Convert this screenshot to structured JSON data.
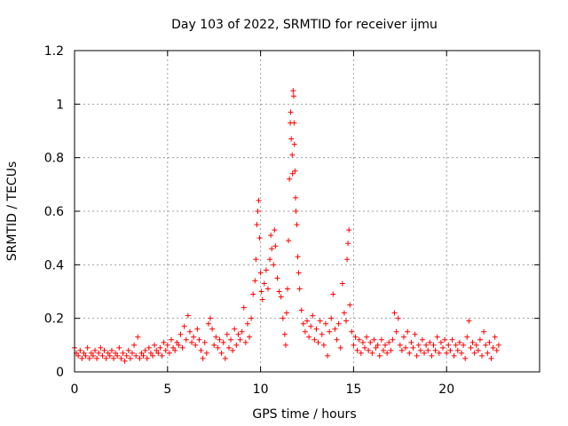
{
  "chart_data": {
    "type": "scatter",
    "title": "Day 103 of 2022, SRMTID for receiver ijmu",
    "xlabel": "GPS time / hours",
    "ylabel": "SRMTID / TECUs",
    "xlim": [
      0,
      25
    ],
    "ylim": [
      0,
      1.2
    ],
    "xticks": [
      0,
      5,
      10,
      15,
      20
    ],
    "xtick_labels": [
      "0",
      "5",
      "10",
      "15",
      "20"
    ],
    "yticks": [
      0,
      0.2,
      0.4,
      0.6,
      0.8,
      1,
      1.2
    ],
    "ytick_labels": [
      "0",
      "0.2",
      "0.4",
      "0.6",
      "0.8",
      "1",
      "1.2"
    ],
    "grid": true,
    "marker": "+",
    "color": "#ff0000",
    "series": [
      {
        "name": "SRMTID",
        "points": [
          [
            0.0,
            0.09
          ],
          [
            0.1,
            0.07
          ],
          [
            0.2,
            0.06
          ],
          [
            0.3,
            0.08
          ],
          [
            0.4,
            0.05
          ],
          [
            0.5,
            0.07
          ],
          [
            0.6,
            0.06
          ],
          [
            0.7,
            0.09
          ],
          [
            0.8,
            0.05
          ],
          [
            0.9,
            0.07
          ],
          [
            1.0,
            0.06
          ],
          [
            1.1,
            0.08
          ],
          [
            1.2,
            0.05
          ],
          [
            1.3,
            0.07
          ],
          [
            1.4,
            0.09
          ],
          [
            1.5,
            0.06
          ],
          [
            1.6,
            0.08
          ],
          [
            1.7,
            0.05
          ],
          [
            1.8,
            0.07
          ],
          [
            1.9,
            0.06
          ],
          [
            2.0,
            0.08
          ],
          [
            2.1,
            0.05
          ],
          [
            2.2,
            0.07
          ],
          [
            2.3,
            0.06
          ],
          [
            2.4,
            0.09
          ],
          [
            2.5,
            0.05
          ],
          [
            2.6,
            0.07
          ],
          [
            2.7,
            0.04
          ],
          [
            2.8,
            0.06
          ],
          [
            2.9,
            0.08
          ],
          [
            3.0,
            0.05
          ],
          [
            3.1,
            0.07
          ],
          [
            3.2,
            0.1
          ],
          [
            3.3,
            0.06
          ],
          [
            3.4,
            0.13
          ],
          [
            3.5,
            0.05
          ],
          [
            3.6,
            0.07
          ],
          [
            3.7,
            0.06
          ],
          [
            3.8,
            0.08
          ],
          [
            3.9,
            0.05
          ],
          [
            4.0,
            0.09
          ],
          [
            4.1,
            0.07
          ],
          [
            4.2,
            0.06
          ],
          [
            4.3,
            0.1
          ],
          [
            4.4,
            0.08
          ],
          [
            4.5,
            0.07
          ],
          [
            4.6,
            0.09
          ],
          [
            4.7,
            0.06
          ],
          [
            4.8,
            0.11
          ],
          [
            4.9,
            0.08
          ],
          [
            5.0,
            0.1
          ],
          [
            5.1,
            0.07
          ],
          [
            5.2,
            0.12
          ],
          [
            5.3,
            0.09
          ],
          [
            5.4,
            0.08
          ],
          [
            5.5,
            0.11
          ],
          [
            5.6,
            0.1
          ],
          [
            5.7,
            0.14
          ],
          [
            5.8,
            0.09
          ],
          [
            5.9,
            0.17
          ],
          [
            6.0,
            0.12
          ],
          [
            6.1,
            0.21
          ],
          [
            6.2,
            0.15
          ],
          [
            6.3,
            0.11
          ],
          [
            6.4,
            0.13
          ],
          [
            6.5,
            0.1
          ],
          [
            6.6,
            0.16
          ],
          [
            6.7,
            0.12
          ],
          [
            6.8,
            0.08
          ],
          [
            6.9,
            0.05
          ],
          [
            7.0,
            0.11
          ],
          [
            7.1,
            0.07
          ],
          [
            7.2,
            0.18
          ],
          [
            7.3,
            0.2
          ],
          [
            7.4,
            0.16
          ],
          [
            7.5,
            0.1
          ],
          [
            7.6,
            0.13
          ],
          [
            7.7,
            0.09
          ],
          [
            7.8,
            0.12
          ],
          [
            7.9,
            0.07
          ],
          [
            8.0,
            0.11
          ],
          [
            8.1,
            0.05
          ],
          [
            8.2,
            0.14
          ],
          [
            8.3,
            0.09
          ],
          [
            8.4,
            0.12
          ],
          [
            8.5,
            0.08
          ],
          [
            8.6,
            0.16
          ],
          [
            8.7,
            0.1
          ],
          [
            8.8,
            0.14
          ],
          [
            8.9,
            0.12
          ],
          [
            9.0,
            0.15
          ],
          [
            9.1,
            0.24
          ],
          [
            9.2,
            0.11
          ],
          [
            9.3,
            0.18
          ],
          [
            9.4,
            0.13
          ],
          [
            9.5,
            0.2
          ],
          [
            9.6,
            0.29
          ],
          [
            9.7,
            0.34
          ],
          [
            9.75,
            0.42
          ],
          [
            9.8,
            0.55
          ],
          [
            9.85,
            0.6
          ],
          [
            9.9,
            0.64
          ],
          [
            9.95,
            0.5
          ],
          [
            10.0,
            0.37
          ],
          [
            10.05,
            0.3
          ],
          [
            10.1,
            0.27
          ],
          [
            10.2,
            0.33
          ],
          [
            10.3,
            0.38
          ],
          [
            10.4,
            0.31
          ],
          [
            10.5,
            0.42
          ],
          [
            10.55,
            0.51
          ],
          [
            10.6,
            0.46
          ],
          [
            10.7,
            0.4
          ],
          [
            10.75,
            0.53
          ],
          [
            10.8,
            0.47
          ],
          [
            10.9,
            0.35
          ],
          [
            11.0,
            0.3
          ],
          [
            11.1,
            0.28
          ],
          [
            11.2,
            0.2
          ],
          [
            11.3,
            0.14
          ],
          [
            11.35,
            0.1
          ],
          [
            11.4,
            0.22
          ],
          [
            11.45,
            0.31
          ],
          [
            11.5,
            0.49
          ],
          [
            11.55,
            0.72
          ],
          [
            11.6,
            0.93
          ],
          [
            11.62,
            0.97
          ],
          [
            11.65,
            0.87
          ],
          [
            11.7,
            0.81
          ],
          [
            11.72,
            0.74
          ],
          [
            11.75,
            1.05
          ],
          [
            11.78,
            1.03
          ],
          [
            11.8,
            0.93
          ],
          [
            11.82,
            0.85
          ],
          [
            11.85,
            0.75
          ],
          [
            11.88,
            0.65
          ],
          [
            11.9,
            0.6
          ],
          [
            11.95,
            0.55
          ],
          [
            12.0,
            0.43
          ],
          [
            12.05,
            0.37
          ],
          [
            12.1,
            0.31
          ],
          [
            12.2,
            0.23
          ],
          [
            12.3,
            0.18
          ],
          [
            12.4,
            0.15
          ],
          [
            12.5,
            0.19
          ],
          [
            12.6,
            0.13
          ],
          [
            12.7,
            0.17
          ],
          [
            12.8,
            0.21
          ],
          [
            12.9,
            0.12
          ],
          [
            13.0,
            0.16
          ],
          [
            13.1,
            0.11
          ],
          [
            13.2,
            0.19
          ],
          [
            13.3,
            0.14
          ],
          [
            13.4,
            0.1
          ],
          [
            13.5,
            0.18
          ],
          [
            13.6,
            0.06
          ],
          [
            13.7,
            0.15
          ],
          [
            13.8,
            0.2
          ],
          [
            13.9,
            0.29
          ],
          [
            14.0,
            0.16
          ],
          [
            14.1,
            0.12
          ],
          [
            14.2,
            0.18
          ],
          [
            14.3,
            0.09
          ],
          [
            14.4,
            0.33
          ],
          [
            14.5,
            0.22
          ],
          [
            14.6,
            0.19
          ],
          [
            14.65,
            0.42
          ],
          [
            14.7,
            0.48
          ],
          [
            14.75,
            0.53
          ],
          [
            14.8,
            0.25
          ],
          [
            14.9,
            0.15
          ],
          [
            15.0,
            0.1
          ],
          [
            15.1,
            0.13
          ],
          [
            15.2,
            0.08
          ],
          [
            15.3,
            0.12
          ],
          [
            15.4,
            0.07
          ],
          [
            15.5,
            0.11
          ],
          [
            15.6,
            0.09
          ],
          [
            15.7,
            0.13
          ],
          [
            15.8,
            0.08
          ],
          [
            15.9,
            0.11
          ],
          [
            16.0,
            0.07
          ],
          [
            16.1,
            0.12
          ],
          [
            16.2,
            0.09
          ],
          [
            16.3,
            0.1
          ],
          [
            16.4,
            0.06
          ],
          [
            16.5,
            0.12
          ],
          [
            16.6,
            0.08
          ],
          [
            16.7,
            0.1
          ],
          [
            16.8,
            0.07
          ],
          [
            16.9,
            0.11
          ],
          [
            17.0,
            0.08
          ],
          [
            17.1,
            0.12
          ],
          [
            17.2,
            0.22
          ],
          [
            17.3,
            0.15
          ],
          [
            17.4,
            0.2
          ],
          [
            17.5,
            0.1
          ],
          [
            17.6,
            0.08
          ],
          [
            17.7,
            0.13
          ],
          [
            17.8,
            0.09
          ],
          [
            17.9,
            0.15
          ],
          [
            18.0,
            0.07
          ],
          [
            18.1,
            0.11
          ],
          [
            18.2,
            0.09
          ],
          [
            18.3,
            0.14
          ],
          [
            18.4,
            0.06
          ],
          [
            18.5,
            0.1
          ],
          [
            18.6,
            0.08
          ],
          [
            18.7,
            0.12
          ],
          [
            18.8,
            0.07
          ],
          [
            18.9,
            0.1
          ],
          [
            19.0,
            0.08
          ],
          [
            19.1,
            0.11
          ],
          [
            19.2,
            0.06
          ],
          [
            19.3,
            0.1
          ],
          [
            19.4,
            0.08
          ],
          [
            19.5,
            0.13
          ],
          [
            19.6,
            0.07
          ],
          [
            19.7,
            0.11
          ],
          [
            19.8,
            0.09
          ],
          [
            19.9,
            0.12
          ],
          [
            20.0,
            0.07
          ],
          [
            20.1,
            0.1
          ],
          [
            20.2,
            0.08
          ],
          [
            20.3,
            0.12
          ],
          [
            20.4,
            0.06
          ],
          [
            20.5,
            0.1
          ],
          [
            20.6,
            0.08
          ],
          [
            20.7,
            0.11
          ],
          [
            20.8,
            0.07
          ],
          [
            20.9,
            0.1
          ],
          [
            21.0,
            0.05
          ],
          [
            21.1,
            0.13
          ],
          [
            21.2,
            0.19
          ],
          [
            21.3,
            0.09
          ],
          [
            21.4,
            0.11
          ],
          [
            21.5,
            0.07
          ],
          [
            21.6,
            0.1
          ],
          [
            21.7,
            0.08
          ],
          [
            21.8,
            0.12
          ],
          [
            21.9,
            0.06
          ],
          [
            22.0,
            0.15
          ],
          [
            22.1,
            0.1
          ],
          [
            22.2,
            0.07
          ],
          [
            22.3,
            0.11
          ],
          [
            22.4,
            0.05
          ],
          [
            22.5,
            0.09
          ],
          [
            22.6,
            0.13
          ],
          [
            22.7,
            0.08
          ],
          [
            22.8,
            0.1
          ]
        ]
      }
    ]
  }
}
